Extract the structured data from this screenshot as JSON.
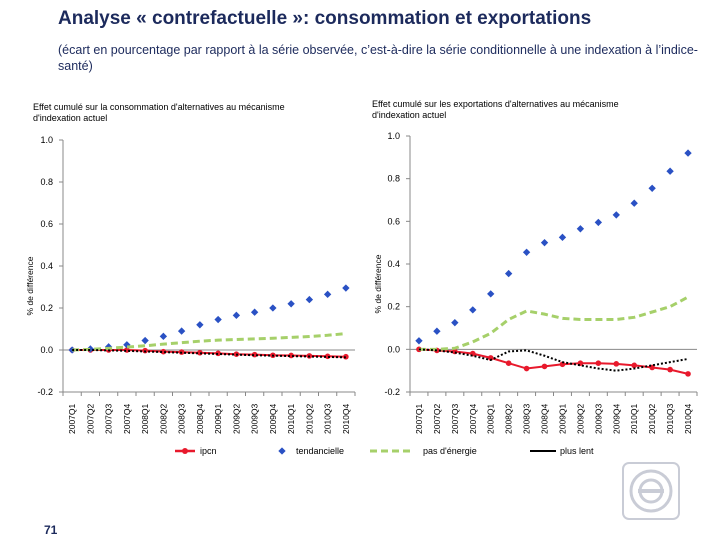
{
  "header": {
    "title": "Analyse « contrefactuelle »: consommation et exportations",
    "subtitle": "(écart en pourcentage par rapport à la série observée, c’est‑à‑dire la série conditionnelle à une indexation à l’indice-santé)"
  },
  "footer": {
    "page_number": "71"
  },
  "colors": {
    "ipcn": "#e8192c",
    "tendancielle": "#2a51c4",
    "energie": "#a6d06a",
    "lent": "#000000",
    "title": "#1c2a5c"
  },
  "chart_data": [
    {
      "type": "line",
      "title": "Effet cumulé sur la consommation d'alternatives au mécanisme d'indexation actuel",
      "ylabel": "% de différence",
      "ylim": [
        -0.2,
        1.0
      ],
      "yticks": [
        -0.2,
        0.0,
        0.2,
        0.4,
        0.6,
        0.8,
        1.0
      ],
      "ytick_labels": [
        "-0.2",
        "0.0",
        "0.2",
        "0.4",
        "0.6",
        "0.8",
        "1.0"
      ],
      "categories": [
        "2007Q1",
        "2007Q2",
        "2007Q3",
        "2007Q4",
        "2008Q1",
        "2008Q2",
        "2008Q3",
        "2008Q4",
        "2009Q1",
        "2009Q2",
        "2009Q3",
        "2009Q4",
        "2010Q1",
        "2010Q2",
        "2010Q3",
        "2010Q4"
      ],
      "series": [
        {
          "name": "ipcn",
          "values": [
            0.0,
            0.0,
            0.0,
            0.0,
            -0.003,
            -0.008,
            -0.01,
            -0.013,
            -0.016,
            -0.02,
            -0.022,
            -0.025,
            -0.026,
            -0.028,
            -0.03,
            -0.032
          ]
        },
        {
          "name": "tendancielle",
          "values": [
            0.0,
            0.005,
            0.015,
            0.025,
            0.045,
            0.065,
            0.09,
            0.12,
            0.145,
            0.165,
            0.18,
            0.2,
            0.22,
            0.24,
            0.265,
            0.295
          ]
        },
        {
          "name": "pas d'énergie",
          "values": [
            0.0,
            0.003,
            0.008,
            0.014,
            0.02,
            0.028,
            0.035,
            0.042,
            0.047,
            0.05,
            0.053,
            0.056,
            0.06,
            0.064,
            0.07,
            0.078
          ]
        },
        {
          "name": "plus lent",
          "values": [
            0.0,
            0.0,
            -0.002,
            -0.004,
            -0.007,
            -0.01,
            -0.013,
            -0.016,
            -0.019,
            -0.022,
            -0.025,
            -0.027,
            -0.029,
            -0.031,
            -0.033,
            -0.035
          ]
        }
      ]
    },
    {
      "type": "line",
      "title": "Effet cumulé sur les exportations d'alternatives au mécanisme d'indexation actuel",
      "ylabel": "% de différence",
      "ylim": [
        -0.2,
        1.0
      ],
      "yticks": [
        -0.2,
        0.0,
        0.2,
        0.4,
        0.6,
        0.8,
        1.0
      ],
      "ytick_labels": [
        "-0.2",
        "0.0",
        "0.2",
        "0.4",
        "0.6",
        "0.8",
        "1.0"
      ],
      "categories": [
        "2007Q1",
        "2007Q2",
        "2007Q3",
        "2007Q4",
        "2008Q1",
        "2008Q2",
        "2008Q3",
        "2008Q4",
        "2009Q1",
        "2009Q2",
        "2009Q3",
        "2009Q4",
        "2010Q1",
        "2010Q2",
        "2010Q3",
        "2010Q4"
      ],
      "series": [
        {
          "name": "ipcn",
          "values": [
            0.0,
            -0.005,
            -0.01,
            -0.02,
            -0.04,
            -0.065,
            -0.09,
            -0.08,
            -0.07,
            -0.065,
            -0.065,
            -0.068,
            -0.075,
            -0.085,
            -0.095,
            -0.115
          ]
        },
        {
          "name": "tendancielle",
          "values": [
            0.04,
            0.085,
            0.125,
            0.185,
            0.26,
            0.355,
            0.455,
            0.5,
            0.525,
            0.565,
            0.595,
            0.63,
            0.685,
            0.755,
            0.835,
            0.92
          ]
        },
        {
          "name": "pas d'énergie",
          "values": [
            0.0,
            0.0,
            0.005,
            0.035,
            0.075,
            0.14,
            0.18,
            0.165,
            0.145,
            0.14,
            0.14,
            0.14,
            0.15,
            0.175,
            0.2,
            0.245
          ]
        },
        {
          "name": "plus lent",
          "values": [
            0.0,
            -0.005,
            -0.015,
            -0.03,
            -0.05,
            -0.01,
            -0.005,
            -0.03,
            -0.06,
            -0.075,
            -0.09,
            -0.1,
            -0.09,
            -0.075,
            -0.06,
            -0.045
          ]
        }
      ]
    }
  ],
  "legend": [
    {
      "label": "ipcn",
      "style": "line-marker"
    },
    {
      "label": "tendancielle",
      "style": "marker"
    },
    {
      "label": "pas d'énergie",
      "style": "dashed"
    },
    {
      "label": "plus lent",
      "style": "line"
    }
  ]
}
